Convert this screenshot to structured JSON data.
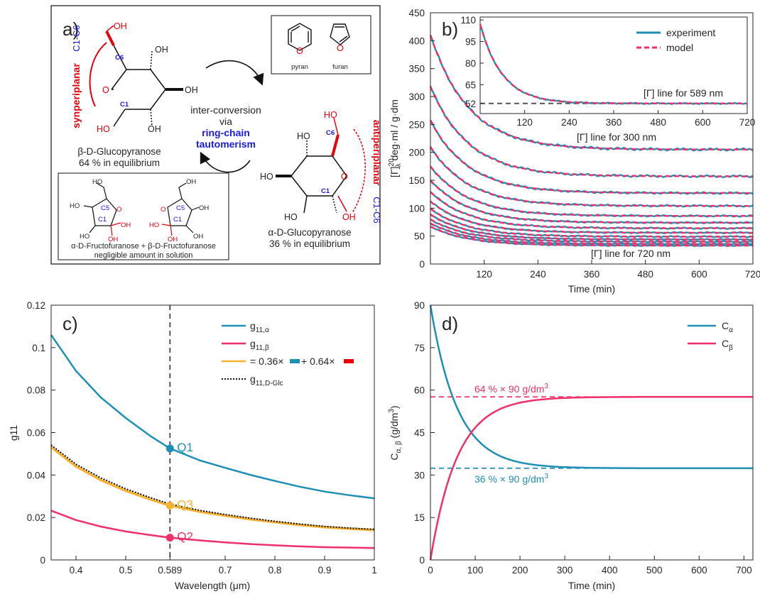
{
  "panel_a": {
    "label": "a)",
    "syn_label_1": "synperiplanar",
    "syn_label_2": "C1-C6",
    "beta_name": "β-D-Glucopyranose",
    "beta_pct": "64 % in equilibrium",
    "alpha_name": "α-D-Glucopyranose",
    "alpha_pct": "36 % in equilibrium",
    "anti_label_1": "antiperiplanar",
    "anti_label_2": "C1-C6",
    "conv_1": "inter-conversion",
    "conv_2": "via",
    "conv_3": "ring-chain",
    "conv_4": "tautomerism",
    "pyran": "pyran",
    "furan": "furan",
    "fructo_line": "α-D-Fructofuranose + β-D-Fructofuranose",
    "fructo_note": "negligible amount in solution",
    "atoms": {
      "O": "O",
      "OH": "OH",
      "HO": "HO",
      "C1": "C1",
      "C5": "C5",
      "C6": "C6"
    },
    "colors": {
      "red": "#e8000b",
      "blue": "#1a1ae6"
    }
  },
  "chart_data": [
    {
      "id": "b",
      "type": "line",
      "panel_label": "b)",
      "xlabel": "Time (min)",
      "ylabel_main": "[Γ]",
      "ylabel_sup": "20",
      "ylabel_sub": "λ",
      "ylabel_rest": " deg·ml / g·dm",
      "xlim": [
        0,
        720
      ],
      "ylim": [
        0,
        450
      ],
      "xticks": [
        120,
        240,
        360,
        480,
        600,
        720
      ],
      "yticks": [
        0,
        50,
        100,
        150,
        200,
        250,
        300,
        350,
        400,
        450
      ],
      "series_legend": [
        {
          "name": "experiment",
          "color": "#1f8fb5",
          "style": "solid"
        },
        {
          "name": "model",
          "color": "#f0306a",
          "style": "dashed"
        }
      ],
      "curves": [
        {
          "y0": 410,
          "yinf": 205,
          "tau": 85
        },
        {
          "y0": 318,
          "yinf": 157,
          "tau": 85
        },
        {
          "y0": 257,
          "yinf": 127,
          "tau": 85
        },
        {
          "y0": 210,
          "yinf": 104,
          "tau": 85
        },
        {
          "y0": 175,
          "yinf": 86,
          "tau": 85
        },
        {
          "y0": 150,
          "yinf": 74,
          "tau": 85
        },
        {
          "y0": 129,
          "yinf": 64,
          "tau": 85
        },
        {
          "y0": 112,
          "yinf": 56,
          "tau": 85
        },
        {
          "y0": 99,
          "yinf": 49,
          "tau": 85
        },
        {
          "y0": 89,
          "yinf": 44,
          "tau": 85
        },
        {
          "y0": 80,
          "yinf": 40,
          "tau": 85
        },
        {
          "y0": 73,
          "yinf": 36,
          "tau": 85
        },
        {
          "y0": 67,
          "yinf": 33,
          "tau": 85
        }
      ],
      "annotations": [
        "[Γ] line for 300 nm",
        "[Γ] line for 720 nm"
      ],
      "inset": {
        "xlim": [
          0,
          720
        ],
        "ylim": [
          45,
          112
        ],
        "xticks": [
          120,
          240,
          360,
          480,
          600,
          720
        ],
        "yticks": [
          52,
          65,
          80,
          95,
          110
        ],
        "curve": {
          "y0": 107,
          "yinf": 52,
          "tau": 60
        },
        "hline": 52,
        "annotation": "[Γ] line for 589 nm"
      }
    },
    {
      "id": "c",
      "type": "line",
      "panel_label": "c)",
      "xlabel": "Wavelength (μm)",
      "ylabel": "g11",
      "xlim": [
        0.35,
        1.0
      ],
      "ylim": [
        0,
        0.12
      ],
      "xticks": [
        0.4,
        0.5,
        0.589,
        0.7,
        0.8,
        0.9,
        1
      ],
      "xtick_labels": [
        "0.4",
        "0.5",
        "0.589",
        "0.7",
        "0.8",
        "0.9",
        "1"
      ],
      "yticks": [
        0,
        0.02,
        0.04,
        0.06,
        0.08,
        0.1,
        0.12
      ],
      "ytick_labels": [
        "0",
        "0.02",
        "0.04",
        "0.06",
        "0.08",
        "0.1",
        "0.12"
      ],
      "vline_x": 0.589,
      "series": [
        {
          "name": "g11,α",
          "color": "#1f8fb5",
          "x": [
            0.35,
            0.4,
            0.45,
            0.5,
            0.55,
            0.589,
            0.65,
            0.7,
            0.75,
            0.8,
            0.85,
            0.9,
            0.95,
            1.0
          ],
          "y": [
            0.106,
            0.089,
            0.0765,
            0.0669,
            0.0583,
            0.0525,
            0.0468,
            0.0434,
            0.0401,
            0.0372,
            0.0345,
            0.0322,
            0.0305,
            0.029
          ]
        },
        {
          "name": "g11,β",
          "color": "#f0306a",
          "x": [
            0.35,
            0.4,
            0.45,
            0.5,
            0.55,
            0.589,
            0.65,
            0.7,
            0.75,
            0.8,
            0.85,
            0.9,
            0.95,
            1.0
          ],
          "y": [
            0.0232,
            0.0188,
            0.0157,
            0.0134,
            0.0117,
            0.0105,
            0.0092,
            0.0083,
            0.0075,
            0.0069,
            0.0064,
            0.006,
            0.0058,
            0.0056
          ]
        },
        {
          "name": "= 0.36× + 0.64×",
          "color": "#f5b335",
          "x": [
            0.35,
            0.4,
            0.45,
            0.5,
            0.55,
            0.589,
            0.65,
            0.7,
            0.75,
            0.8,
            0.85,
            0.9,
            0.95,
            1.0
          ],
          "y": [
            0.0531,
            0.0441,
            0.0376,
            0.0326,
            0.0285,
            0.0256,
            0.0227,
            0.0209,
            0.0192,
            0.0178,
            0.0165,
            0.0154,
            0.0147,
            0.0141
          ]
        },
        {
          "name": "g11,D-Glc",
          "color": "#111111",
          "x": [
            0.35,
            0.4,
            0.45,
            0.5,
            0.55,
            0.589,
            0.65,
            0.7,
            0.75,
            0.8,
            0.85,
            0.9,
            0.95,
            1.0
          ],
          "y": [
            0.0541,
            0.0451,
            0.0386,
            0.0335,
            0.0293,
            0.0263,
            0.0233,
            0.0214,
            0.0197,
            0.0182,
            0.0169,
            0.0158,
            0.015,
            0.0144
          ]
        }
      ],
      "legend_labels": {
        "alpha_main": "g",
        "alpha_sub": "11,α",
        "beta_main": "g",
        "beta_sub": "11,β",
        "mix_1": "= 0.36×",
        "mix_2": "+ 0.64×",
        "glc_main": "g",
        "glc_sub": "11,D-Glc"
      },
      "points": [
        {
          "label": "Q1",
          "x": 0.589,
          "y": 0.0525,
          "color": "#1f8fb5"
        },
        {
          "label": "Q3",
          "x": 0.589,
          "y": 0.0256,
          "color": "#f5b335"
        },
        {
          "label": "Q2",
          "x": 0.589,
          "y": 0.0105,
          "color": "#f0306a"
        }
      ]
    },
    {
      "id": "d",
      "type": "line",
      "panel_label": "d)",
      "xlabel": "Time (min)",
      "ylabel": "Cα,β (g/dm3)",
      "ylabel_main": "C",
      "ylabel_sub": "α, β",
      "ylabel_rest": " (g/dm",
      "ylabel_sup": "3",
      "ylabel_end": ")",
      "xlim": [
        0,
        720
      ],
      "ylim": [
        0,
        90
      ],
      "xticks": [
        0,
        100,
        200,
        300,
        400,
        500,
        600,
        700
      ],
      "yticks": [
        0,
        15,
        30,
        45,
        60,
        75,
        90
      ],
      "series": [
        {
          "name": "Cα",
          "main": "C",
          "sub": "α",
          "color": "#1f8fb5",
          "y0": 90,
          "yinf": 32.4,
          "tau": 60
        },
        {
          "name": "Cβ",
          "main": "C",
          "sub": "β",
          "color": "#f0306a",
          "y0": 0,
          "yinf": 57.6,
          "tau": 60
        }
      ],
      "hlines": [
        {
          "y": 57.6,
          "color": "#f0306a",
          "label": "64 % × 90 g/dm",
          "sup": "3"
        },
        {
          "y": 32.4,
          "color": "#1f8fb5",
          "label": "36 % × 90 g/dm",
          "sup": "3"
        }
      ]
    }
  ]
}
